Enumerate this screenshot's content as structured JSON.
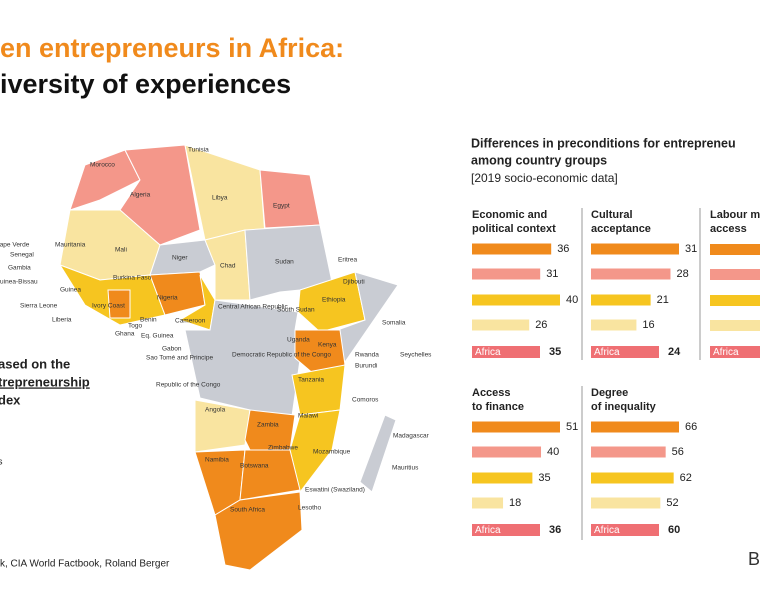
{
  "header": {
    "title_line1": "en entrepreneurs in Africa:",
    "title_line2": "iversity of experiences"
  },
  "map": {
    "note_line1": "ased on the",
    "note_line2": "trepreneurship",
    "note_line3": "dex",
    "note_line4": "s",
    "labels": [
      "Tunisia",
      "Morocco",
      "Algeria",
      "Libya",
      "Egypt",
      "Cape Verde",
      "Mauritania",
      "Mali",
      "Niger",
      "Chad",
      "Sudan",
      "Eritrea",
      "Djibouti",
      "Senegal",
      "Gambia",
      "Guinea-Bissau",
      "Guinea",
      "Sierra Leone",
      "Liberia",
      "Ivory Coast",
      "Burkina Faso",
      "Ghana",
      "Togo",
      "Benin",
      "Nigeria",
      "Eq. Guinea",
      "Cameroon",
      "Central African Republic",
      "South Sudan",
      "Ethiopia",
      "Somalia",
      "Uganda",
      "Kenya",
      "Gabon",
      "Sao Tomé and Principe",
      "Republic of the Congo",
      "Democratic Republic of the Congo",
      "Rwanda",
      "Burundi",
      "Seychelles",
      "Tanzania",
      "Comoros",
      "Angola",
      "Zambia",
      "Malawi",
      "Madagascar",
      "Mozambique",
      "Mauritius",
      "Zimbabwe",
      "Namibia",
      "Botswana",
      "Eswatini (Swaziland)",
      "South Africa",
      "Lesotho"
    ]
  },
  "panel_header": {
    "line1": "Differences in preconditions for entrepreneu",
    "line2": "among country groups",
    "line3": "[2019 socio-economic data]"
  },
  "chart_data": [
    {
      "type": "bar",
      "title_line1": "Economic and",
      "title_line2": "political context",
      "values": [
        36,
        31,
        40,
        26
      ],
      "colors": [
        "#f08a1c",
        "#f4978a",
        "#f6c520",
        "#f9e4a0"
      ],
      "africa_label": "Africa",
      "africa_value": 35
    },
    {
      "type": "bar",
      "title_line1": "Cultural",
      "title_line2": "acceptance",
      "values": [
        31,
        28,
        21,
        16
      ],
      "colors": [
        "#f08a1c",
        "#f4978a",
        "#f6c520",
        "#f9e4a0"
      ],
      "africa_label": "Africa",
      "africa_value": 24
    },
    {
      "type": "bar",
      "title_line1": "Access",
      "title_line2": "to finance",
      "values": [
        51,
        40,
        35,
        18
      ],
      "colors": [
        "#f08a1c",
        "#f4978a",
        "#f6c520",
        "#f9e4a0"
      ],
      "africa_label": "Africa",
      "africa_value": 36
    },
    {
      "type": "bar",
      "title_line1": "Degree",
      "title_line2": "of inequality",
      "values": [
        66,
        56,
        62,
        52
      ],
      "colors": [
        "#f08a1c",
        "#f4978a",
        "#f6c520",
        "#f9e4a0"
      ],
      "africa_label": "Africa",
      "africa_value": 60
    }
  ],
  "partial_panel": {
    "title_line1": "Labour ma",
    "title_line2": "access",
    "africa_label": "Africa"
  },
  "footer": {
    "source": "k, CIA World Factbook, Roland Berger",
    "logo": "B"
  }
}
